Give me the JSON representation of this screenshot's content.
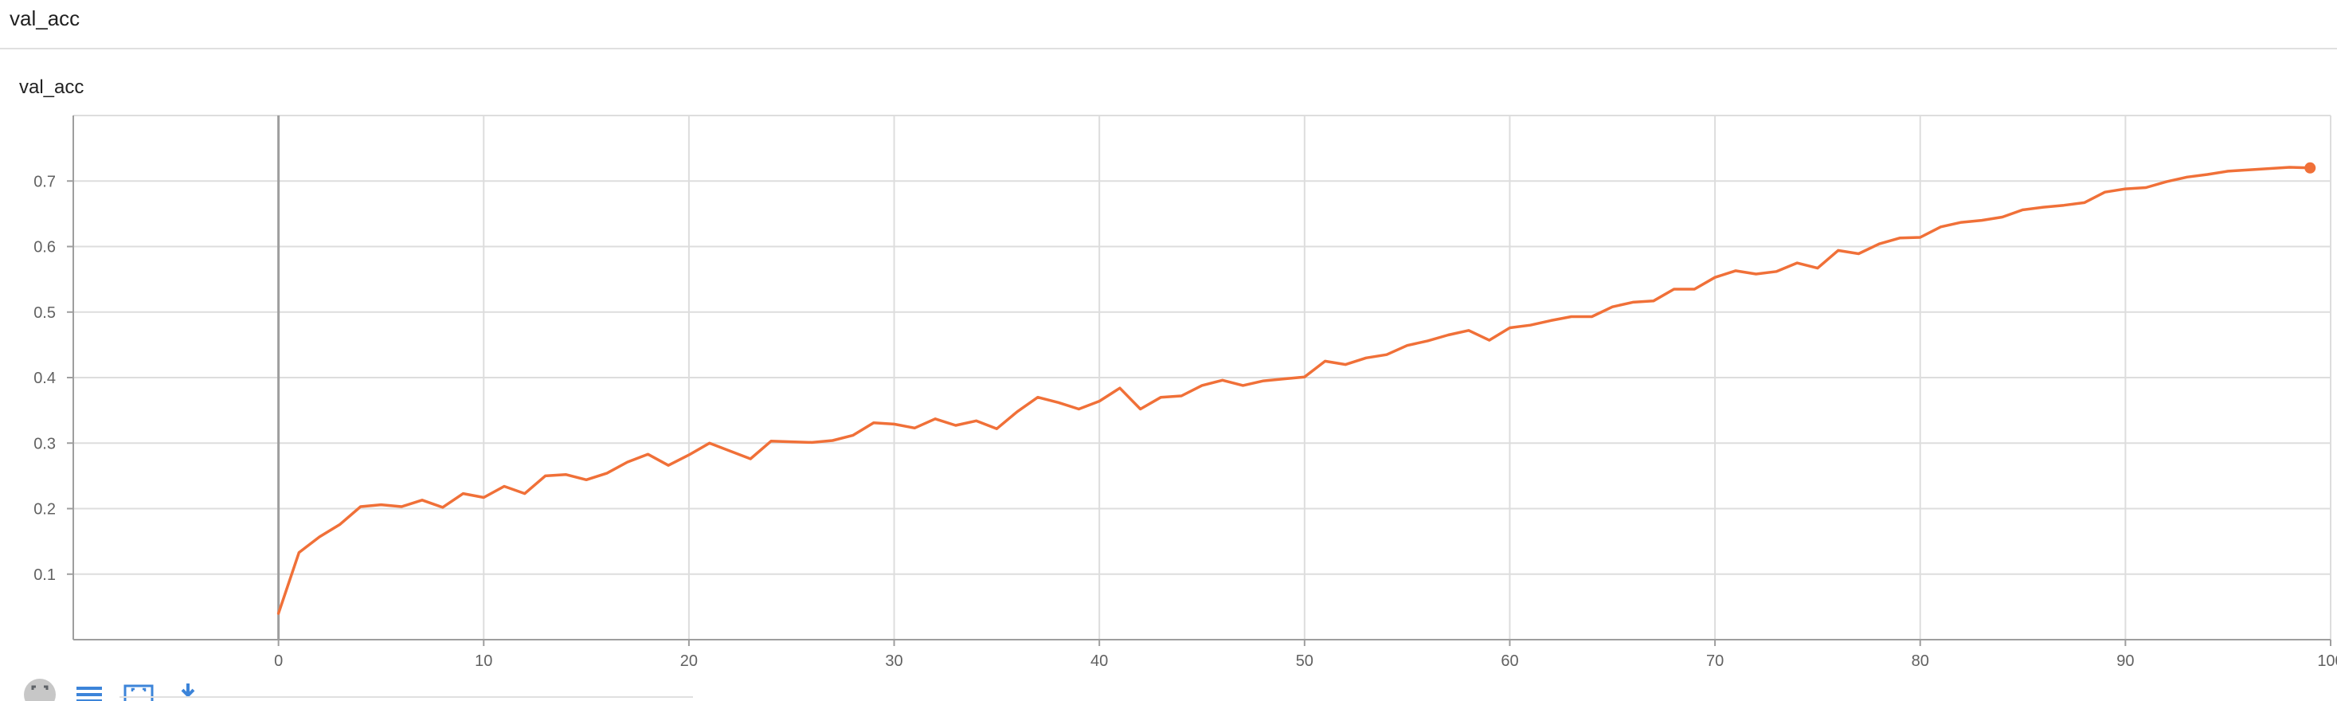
{
  "section": {
    "title": "val_acc"
  },
  "card": {
    "title": "val_acc"
  },
  "colors": {
    "series": "#f07038",
    "grid": "#dddddd",
    "axis": "#9e9e9e",
    "zero_line": "#9e9e9e",
    "toolbar_icon": "#3c84d9"
  },
  "toolbar": {
    "icons": [
      "fullscreen-icon",
      "list-icon",
      "fit-domain-icon",
      "download-icon"
    ]
  },
  "chart_data": {
    "type": "line",
    "title": "val_acc",
    "xlabel": "",
    "ylabel": "",
    "xlim": [
      -10,
      100
    ],
    "ylim": [
      0,
      0.8
    ],
    "xticks": [
      0,
      10,
      20,
      30,
      40,
      50,
      60,
      70,
      80,
      90,
      100
    ],
    "yticks": [
      0.1,
      0.2,
      0.3,
      0.4,
      0.5,
      0.6,
      0.7
    ],
    "grid": true,
    "legend": "none",
    "series": [
      {
        "color": "#f07038",
        "x": [
          0,
          1,
          2,
          3,
          4,
          5,
          6,
          7,
          8,
          9,
          10,
          11,
          12,
          13,
          14,
          15,
          16,
          17,
          18,
          19,
          20,
          21,
          22,
          23,
          24,
          25,
          26,
          27,
          28,
          29,
          30,
          31,
          32,
          33,
          34,
          35,
          36,
          37,
          38,
          39,
          40,
          41,
          42,
          43,
          44,
          45,
          46,
          47,
          48,
          49,
          50,
          51,
          52,
          53,
          54,
          55,
          56,
          57,
          58,
          59,
          60,
          61,
          62,
          63,
          64,
          65,
          66,
          67,
          68,
          69,
          70,
          71,
          72,
          73,
          74,
          75,
          76,
          77,
          78,
          79,
          80,
          81,
          82,
          83,
          84,
          85,
          86,
          87,
          88,
          89,
          90,
          91,
          92,
          93,
          94,
          95,
          96,
          97,
          98,
          99
        ],
        "y": [
          0.04,
          0.133,
          0.157,
          0.176,
          0.203,
          0.206,
          0.203,
          0.213,
          0.202,
          0.223,
          0.217,
          0.234,
          0.223,
          0.25,
          0.252,
          0.244,
          0.254,
          0.271,
          0.283,
          0.266,
          0.282,
          0.3,
          0.288,
          0.276,
          0.303,
          0.302,
          0.301,
          0.304,
          0.312,
          0.331,
          0.329,
          0.323,
          0.337,
          0.327,
          0.334,
          0.322,
          0.348,
          0.37,
          0.362,
          0.352,
          0.364,
          0.384,
          0.352,
          0.37,
          0.372,
          0.388,
          0.396,
          0.388,
          0.395,
          0.398,
          0.401,
          0.425,
          0.42,
          0.43,
          0.435,
          0.449,
          0.456,
          0.465,
          0.472,
          0.457,
          0.476,
          0.48,
          0.487,
          0.493,
          0.493,
          0.508,
          0.515,
          0.517,
          0.535,
          0.535,
          0.553,
          0.563,
          0.558,
          0.562,
          0.575,
          0.567,
          0.594,
          0.589,
          0.604,
          0.613,
          0.614,
          0.63,
          0.637,
          0.64,
          0.645,
          0.656,
          0.66,
          0.663,
          0.667,
          0.683,
          0.688,
          0.69,
          0.699,
          0.706,
          0.71,
          0.715,
          0.717,
          0.719,
          0.721,
          0.72
        ]
      }
    ]
  }
}
